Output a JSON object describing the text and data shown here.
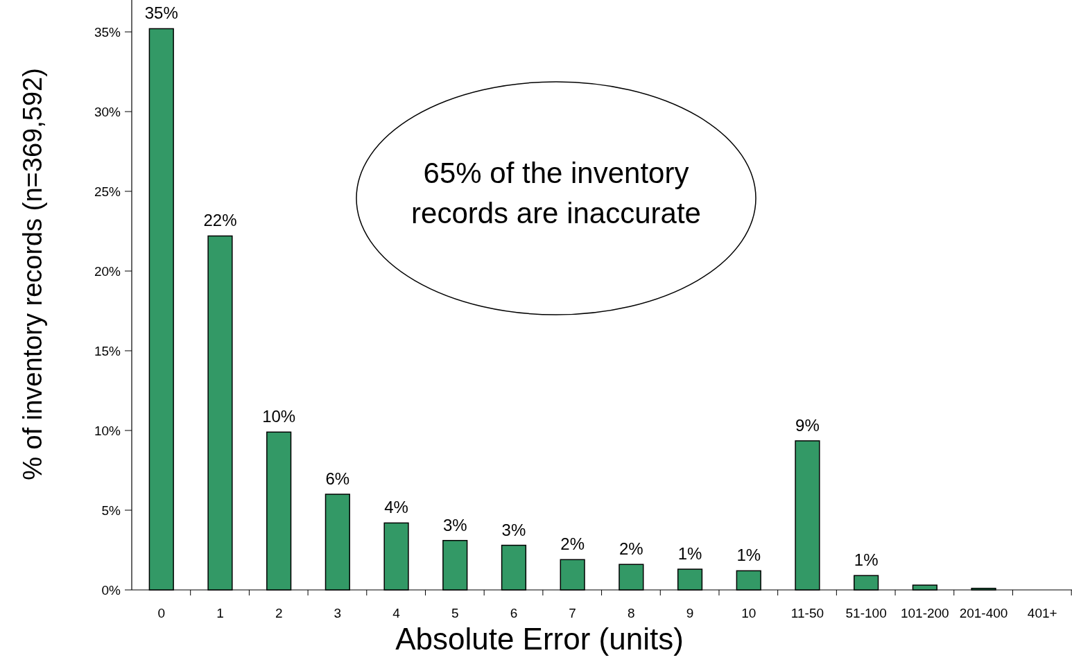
{
  "chart_data": {
    "type": "bar",
    "xlabel": "Absolute Error (units)",
    "ylabel": "% of inventory records (n=369,592)",
    "categories": [
      "0",
      "1",
      "2",
      "3",
      "4",
      "5",
      "6",
      "7",
      "8",
      "9",
      "10",
      "11-50",
      "51-100",
      "101-200",
      "201-400",
      "401+"
    ],
    "values": [
      35.2,
      22.2,
      9.9,
      6.0,
      4.2,
      3.1,
      2.8,
      1.9,
      1.6,
      1.3,
      1.2,
      9.35,
      0.9,
      0.3,
      0.1,
      0
    ],
    "value_labels": [
      "35%",
      "22%",
      "10%",
      "6%",
      "4%",
      "3%",
      "3%",
      "2%",
      "2%",
      "1%",
      "1%",
      "9%",
      "1%",
      null,
      null,
      null
    ],
    "color": "#339966",
    "ylim": [
      0,
      37
    ],
    "yticks": [
      {
        "value": 0,
        "label": "0%"
      },
      {
        "value": 5,
        "label": "5%"
      },
      {
        "value": 10,
        "label": "10%"
      },
      {
        "value": 15,
        "label": "15%"
      },
      {
        "value": 20,
        "label": "20%"
      },
      {
        "value": 25,
        "label": "25%"
      },
      {
        "value": 30,
        "label": "30%"
      },
      {
        "value": 35,
        "label": "35%"
      }
    ],
    "grid": false,
    "annotations": [
      "65% of the inventory records are inaccurate"
    ]
  }
}
